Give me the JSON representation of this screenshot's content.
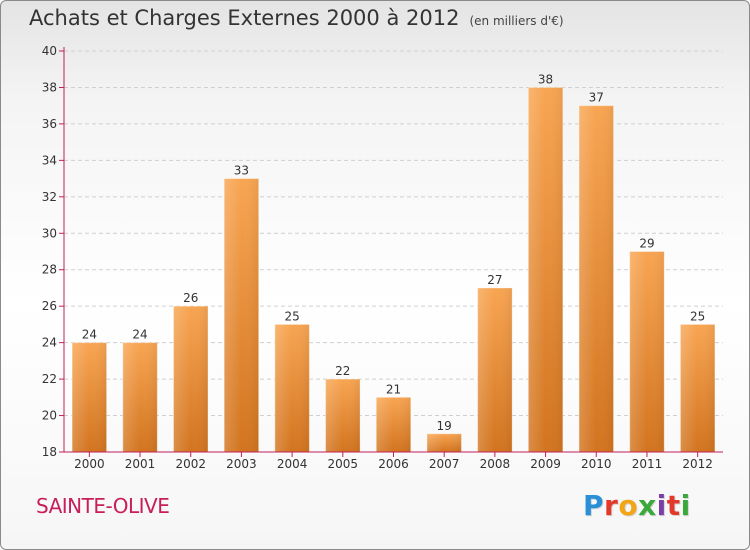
{
  "header": {
    "title": "Achats et Charges Externes 2000 à 2012",
    "unit": "(en milliers d'€)"
  },
  "footer": {
    "town": "SAINTE-OLIVE",
    "brand_letters": [
      "P",
      "r",
      "o",
      "x",
      "i",
      "t",
      "i"
    ],
    "brand_colors": [
      "#2a8fd6",
      "#e2392a",
      "#f2a516",
      "#3aa83a",
      "#7b3fa8",
      "#e2392a",
      "#3aa83a"
    ]
  },
  "colors": {
    "bar_top": "#f8a552",
    "bar_bottom": "#d2741f",
    "axis": "#c0205a",
    "grid": "#cfcfcf"
  },
  "chart_data": {
    "type": "bar",
    "categories": [
      "2000",
      "2001",
      "2002",
      "2003",
      "2004",
      "2005",
      "2006",
      "2007",
      "2008",
      "2009",
      "2010",
      "2011",
      "2012"
    ],
    "values": [
      24,
      24,
      26,
      33,
      25,
      22,
      21,
      19,
      27,
      38,
      37,
      29,
      25
    ],
    "title": "Achats et Charges Externes 2000 à 2012",
    "ylim": [
      18,
      40
    ],
    "yticks": [
      18,
      20,
      22,
      24,
      26,
      28,
      30,
      32,
      34,
      36,
      38,
      40
    ],
    "grid": true,
    "data_labels": true
  }
}
